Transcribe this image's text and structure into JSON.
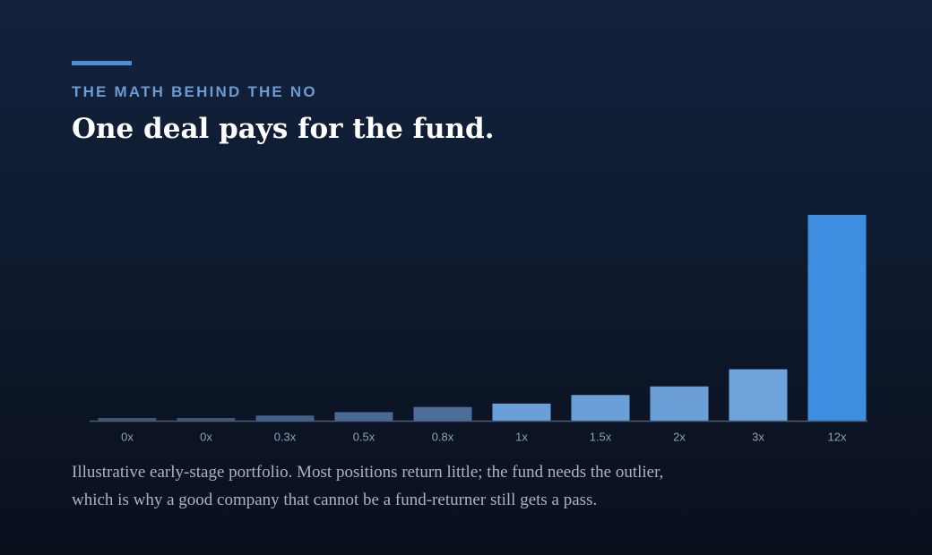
{
  "chart_data": {
    "type": "bar",
    "eyebrow": "THE MATH BEHIND THE NO",
    "title": "One deal pays for the fund.",
    "values": [
      0,
      0,
      0.3,
      0.5,
      0.8,
      1,
      1.5,
      2,
      3,
      12
    ],
    "value_labels": [
      "0x",
      "0x",
      "0.3x",
      "0.5x",
      "0.8x",
      "1x",
      "1.5x",
      "2x",
      "3x",
      "12x"
    ],
    "colors": [
      "#3b577a",
      "#3b577a",
      "#42618a",
      "#4a6994",
      "#4d6d9a",
      "#6a9fd8",
      "#6a9fd8",
      "#6b9fd8",
      "#6fa3dc",
      "#3d8ee0"
    ],
    "caption": [
      "Illustrative early-stage portfolio. Most positions return little; the fund needs the outlier,",
      "which is why a good company that cannot be a fund-returner still gets a pass."
    ]
  }
}
